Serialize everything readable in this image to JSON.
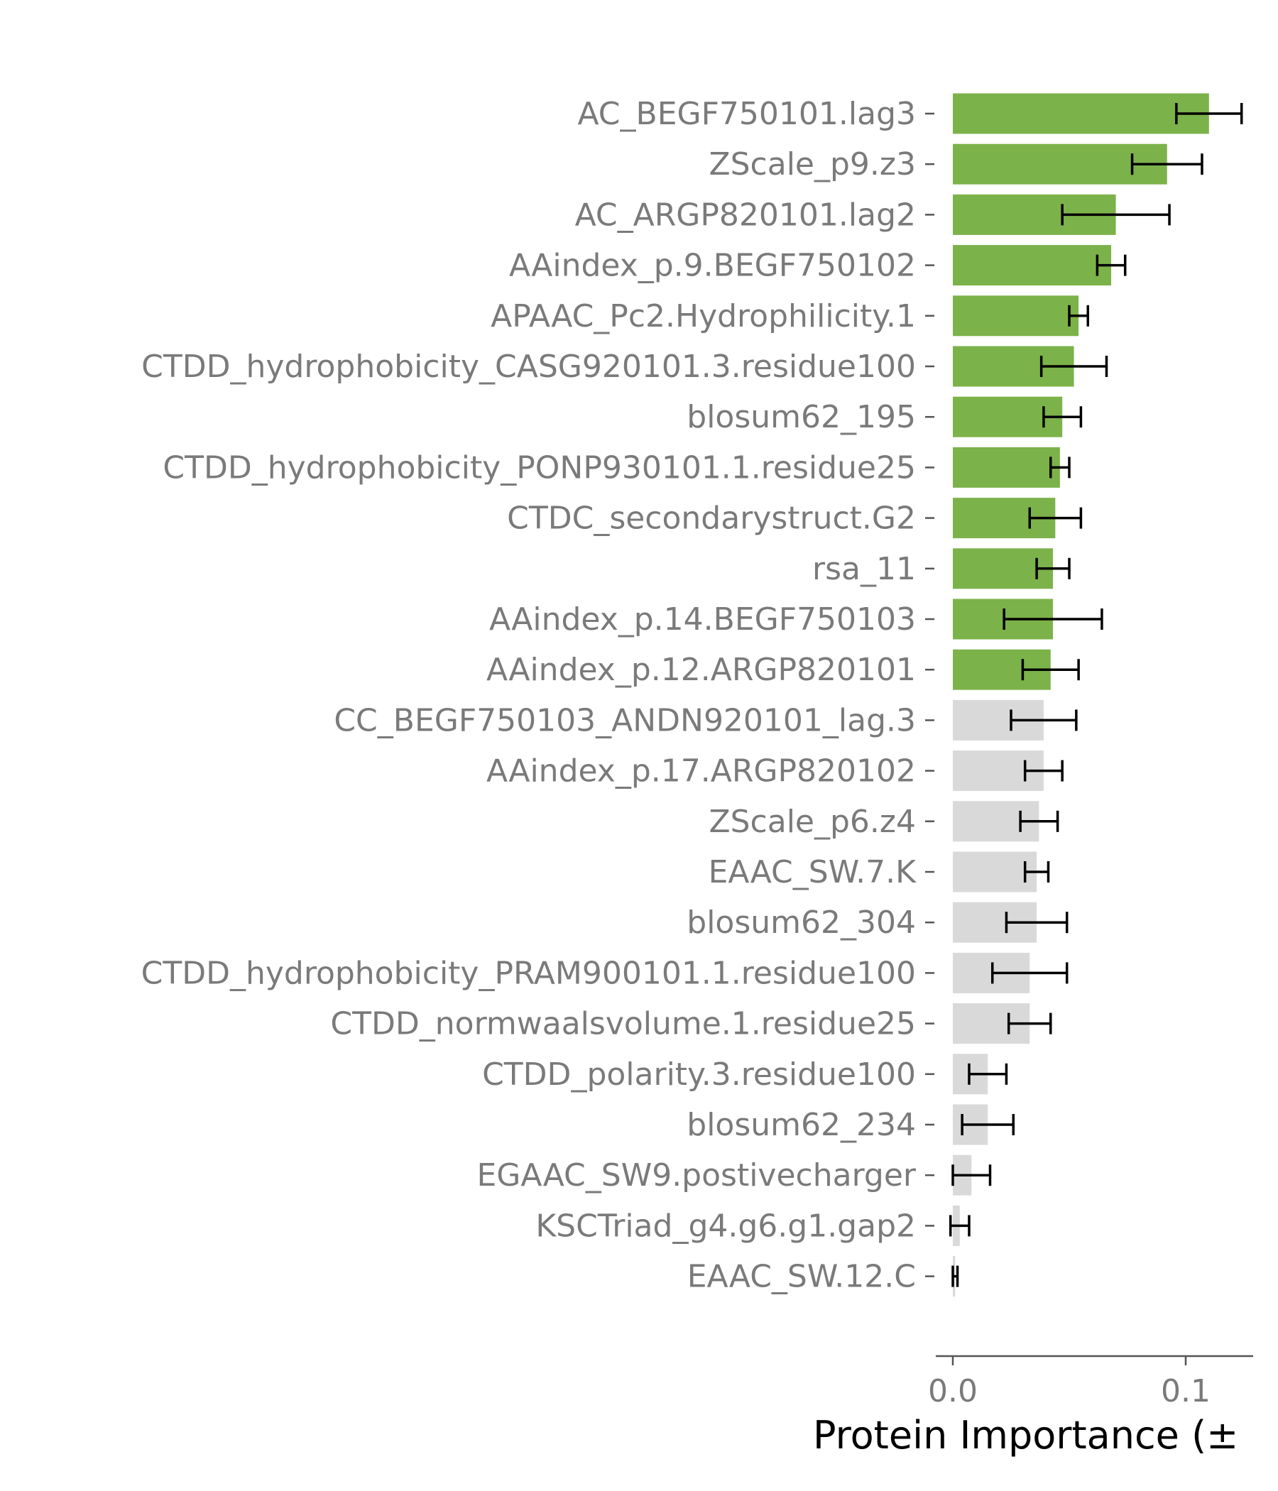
{
  "chart_data": {
    "type": "bar",
    "orientation": "horizontal",
    "xlabel": "Protein Importance (±",
    "ylabel": "",
    "title": "",
    "xlim": [
      -0.008,
      0.13
    ],
    "xticks": [
      0.0,
      0.1
    ],
    "xtick_labels": [
      "0.0",
      "0.1"
    ],
    "grid": false,
    "colors": {
      "highlight": "#7cb24a",
      "rest": "#d9d9d9",
      "error_bar": "#000000",
      "axis": "#555555",
      "tick_text": "#7a7a7a"
    },
    "categories": [
      "AC_BEGF750101.lag3",
      "ZScale_p9.z3",
      "AC_ARGP820101.lag2",
      "AAindex_p.9.BEGF750102",
      "APAAC_Pc2.Hydrophilicity.1",
      "CTDD_hydrophobicity_CASG920101.3.residue100",
      "blosum62_195",
      "CTDD_hydrophobicity_PONP930101.1.residue25",
      "CTDC_secondarystruct.G2",
      "rsa_11",
      "AAindex_p.14.BEGF750103",
      "AAindex_p.12.ARGP820101",
      "CC_BEGF750103_ANDN920101_lag.3",
      "AAindex_p.17.ARGP820102",
      "ZScale_p6.z4",
      "EAAC_SW.7.K",
      "blosum62_304",
      "CTDD_hydrophobicity_PRAM900101.1.residue100",
      "CTDD_normwaalsvolume.1.residue25",
      "CTDD_polarity.3.residue100",
      "blosum62_234",
      "EGAAC_SW9.postivecharger",
      "KSCTriad_g4.g6.g1.gap2",
      "EAAC_SW.12.C"
    ],
    "values": [
      0.11,
      0.092,
      0.07,
      0.068,
      0.054,
      0.052,
      0.047,
      0.046,
      0.044,
      0.043,
      0.043,
      0.042,
      0.039,
      0.039,
      0.037,
      0.036,
      0.036,
      0.033,
      0.033,
      0.015,
      0.015,
      0.008,
      0.003,
      0.001
    ],
    "errors": [
      0.014,
      0.015,
      0.023,
      0.006,
      0.004,
      0.014,
      0.008,
      0.004,
      0.011,
      0.007,
      0.021,
      0.012,
      0.014,
      0.008,
      0.008,
      0.005,
      0.013,
      0.016,
      0.009,
      0.008,
      0.011,
      0.008,
      0.004,
      0.001
    ],
    "highlighted_count": 12
  }
}
